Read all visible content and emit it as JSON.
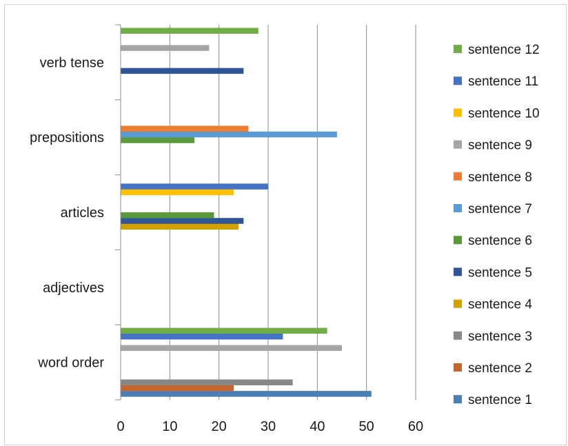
{
  "chart_data": {
    "type": "bar",
    "orientation": "horizontal",
    "title": "",
    "xlabel": "",
    "ylabel": "",
    "categories": [
      "word order",
      "adjectives",
      "articles",
      "prepositions",
      "verb tense"
    ],
    "xlim": [
      0,
      60
    ],
    "xticks": [
      0,
      10,
      20,
      30,
      40,
      50,
      60
    ],
    "grid": "vertical",
    "legend_position": "right",
    "series": [
      {
        "name": "sentence 1",
        "color": "#4a7fb5",
        "values": [
          51,
          null,
          null,
          null,
          null
        ]
      },
      {
        "name": "sentence 2",
        "color": "#c8652c",
        "values": [
          23,
          null,
          null,
          null,
          null
        ]
      },
      {
        "name": "sentence 3",
        "color": "#888888",
        "values": [
          35,
          null,
          null,
          null,
          null
        ]
      },
      {
        "name": "sentence 4",
        "color": "#d4a000",
        "values": [
          null,
          null,
          24,
          null,
          null
        ]
      },
      {
        "name": "sentence 5",
        "color": "#2e5597",
        "values": [
          null,
          null,
          25,
          null,
          25
        ]
      },
      {
        "name": "sentence 6",
        "color": "#5a9a3c",
        "values": [
          null,
          null,
          19,
          15,
          null
        ]
      },
      {
        "name": "sentence 7",
        "color": "#5b9bd5",
        "values": [
          null,
          null,
          null,
          44,
          null
        ]
      },
      {
        "name": "sentence 8",
        "color": "#ed7d31",
        "values": [
          null,
          null,
          null,
          26,
          null
        ]
      },
      {
        "name": "sentence 9",
        "color": "#a5a5a5",
        "values": [
          45,
          null,
          null,
          null,
          18
        ]
      },
      {
        "name": "sentence 10",
        "color": "#ffc000",
        "values": [
          null,
          null,
          23,
          null,
          null
        ]
      },
      {
        "name": "sentence 11",
        "color": "#4472c4",
        "values": [
          33,
          null,
          30,
          null,
          null
        ]
      },
      {
        "name": "sentence 12",
        "color": "#70ad47",
        "values": [
          42,
          null,
          null,
          null,
          28
        ]
      }
    ]
  }
}
